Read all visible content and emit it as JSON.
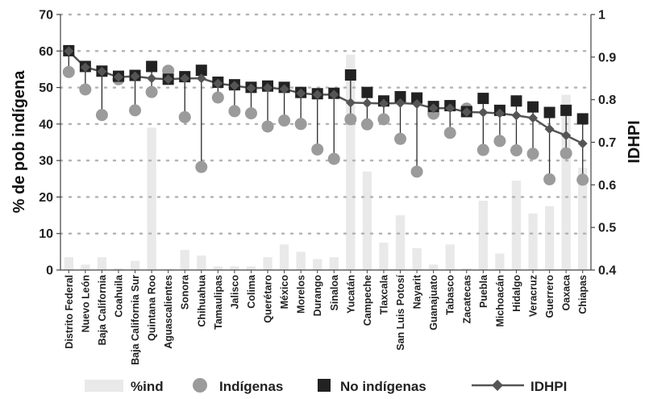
{
  "chart_data": {
    "type": "bar",
    "title": "",
    "ylabel": "% de pob indígena",
    "y2label": "IDHPI",
    "ylim": [
      0,
      70
    ],
    "y2lim": [
      0.4,
      1.0
    ],
    "yticks": [
      0,
      10,
      20,
      30,
      40,
      50,
      60,
      70
    ],
    "y2ticks": [
      "0.4",
      "0.5",
      "0.6",
      "0.7",
      "0.8",
      "0.9",
      "1"
    ],
    "grid": false,
    "legend_position": "bottom",
    "colors": {
      "pct": "#e9e9e9",
      "indigenas": "#9b9b9b",
      "no_indigenas": "#222222",
      "idhpi": "#555555"
    },
    "categories": [
      "Distrito Federal",
      "Nuevo León",
      "Baja California",
      "Coahuila",
      "Baja California Sur",
      "Quintana Roo",
      "Aguascalientes",
      "Sonora",
      "Chihuahua",
      "Tamaulipas",
      "Jalisco",
      "Colima",
      "Querétaro",
      "México",
      "Morelos",
      "Durango",
      "Sinaloa",
      "Yucatán",
      "Campeche",
      "Tlaxcala",
      "San Luis Potosí",
      "Nayarit",
      "Guanajuato",
      "Tabasco",
      "Zacatecas",
      "Puebla",
      "Michoacán",
      "Hidalgo",
      "Veracruz",
      "Guerrero",
      "Oaxaca",
      "Chiapas"
    ],
    "series": [
      {
        "name": "%ind",
        "type": "bar",
        "axis": "left",
        "values": [
          3.5,
          1.5,
          3.5,
          0.5,
          2.5,
          39,
          0.3,
          5.5,
          4,
          1,
          1,
          1,
          3.5,
          7,
          5,
          3,
          3.5,
          59,
          27,
          7.5,
          15,
          6,
          1.5,
          7,
          0.5,
          19,
          4.5,
          24.5,
          15.5,
          17.5,
          48,
          28
        ]
      },
      {
        "name": "Indígenas",
        "type": "scatter",
        "axis": "right",
        "values": [
          0.865,
          0.824,
          0.764,
          0.848,
          0.775,
          0.818,
          0.868,
          0.759,
          0.642,
          0.805,
          0.773,
          0.768,
          0.737,
          0.751,
          0.743,
          0.683,
          0.661,
          0.754,
          0.742,
          0.754,
          0.708,
          0.631,
          0.767,
          0.722,
          0.779,
          0.682,
          0.703,
          0.681,
          0.673,
          0.613,
          0.674,
          0.612
        ]
      },
      {
        "name": "No indígenas",
        "type": "scatter",
        "axis": "right",
        "values": [
          0.915,
          0.878,
          0.867,
          0.855,
          0.857,
          0.878,
          0.848,
          0.854,
          0.869,
          0.841,
          0.835,
          0.829,
          0.832,
          0.829,
          0.817,
          0.814,
          0.815,
          0.858,
          0.817,
          0.797,
          0.807,
          0.804,
          0.784,
          0.786,
          0.772,
          0.803,
          0.775,
          0.797,
          0.783,
          0.77,
          0.775,
          0.755
        ]
      },
      {
        "name": "IDHPI",
        "type": "line",
        "axis": "right",
        "values": [
          0.914,
          0.876,
          0.866,
          0.853,
          0.855,
          0.85,
          0.848,
          0.85,
          0.85,
          0.838,
          0.833,
          0.827,
          0.828,
          0.825,
          0.815,
          0.812,
          0.812,
          0.793,
          0.792,
          0.791,
          0.792,
          0.79,
          0.78,
          0.78,
          0.771,
          0.77,
          0.768,
          0.763,
          0.757,
          0.731,
          0.716,
          0.697
        ]
      }
    ]
  }
}
